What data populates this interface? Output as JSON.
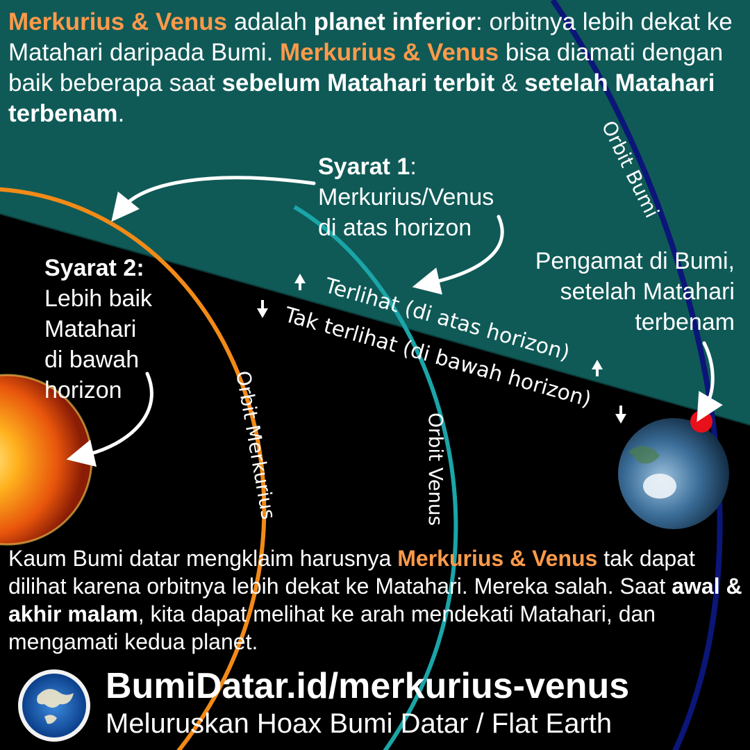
{
  "intro": {
    "merkurius_venus": "Merkurius & Venus",
    "adalah": " adalah ",
    "planet_inferior": "planet inferior",
    "rest1": ": orbitnya lebih dekat ke Matahari daripada Bumi. ",
    "merkurius_venus2": "Merkurius & Venus",
    "rest2": " bisa diamati dengan baik beberapa saat ",
    "sebelum": "sebelum Matahari terbit",
    "amp": " & ",
    "setelah": "setelah Matahari terbenam",
    "period": "."
  },
  "syarat1": {
    "title": "Syarat 1",
    "colon": ":",
    "line1": "Merkurius/Venus",
    "line2": "di atas horizon"
  },
  "syarat2": {
    "title": "Syarat 2:",
    "line1": "Lebih baik",
    "line2": "Matahari",
    "line3": "di bawah",
    "line4": "horizon"
  },
  "pengamat": {
    "line1": "Pengamat di Bumi,",
    "line2": "setelah Matahari",
    "line3": "terbenam"
  },
  "horizon_labels": {
    "visible": "Terlihat (di atas horizon)",
    "invisible": "Tak terlihat (di bawah horizon)"
  },
  "orbit_labels": {
    "earth": "Orbit Bumi",
    "venus": "Orbit Venus",
    "mercury": "Orbit Merkurius"
  },
  "bottom": {
    "p1": "Kaum Bumi datar mengklaim harusnya ",
    "merkurius_venus": "Merkurius & Venus",
    "p2": " tak dapat dilihat karena orbitnya lebih dekat ke Matahari. Mereka salah. Saat ",
    "awal_akhir": "awal & akhir malam",
    "p3": ", kita dapat melihat ke arah mendekati Matahari, dan mengamati kedua planet."
  },
  "footer": {
    "url": "BumiDatar.id/merkurius-venus",
    "tagline": "Meluruskan Hoax Bumi Datar / Flat Earth"
  },
  "colors": {
    "sky": "#0f5a57",
    "mercury_orbit": "#f28a17",
    "venus_orbit": "#1aa5a8",
    "earth_orbit": "#0b1678",
    "observer": "#e8101a",
    "highlight": "#ff9a4a"
  }
}
